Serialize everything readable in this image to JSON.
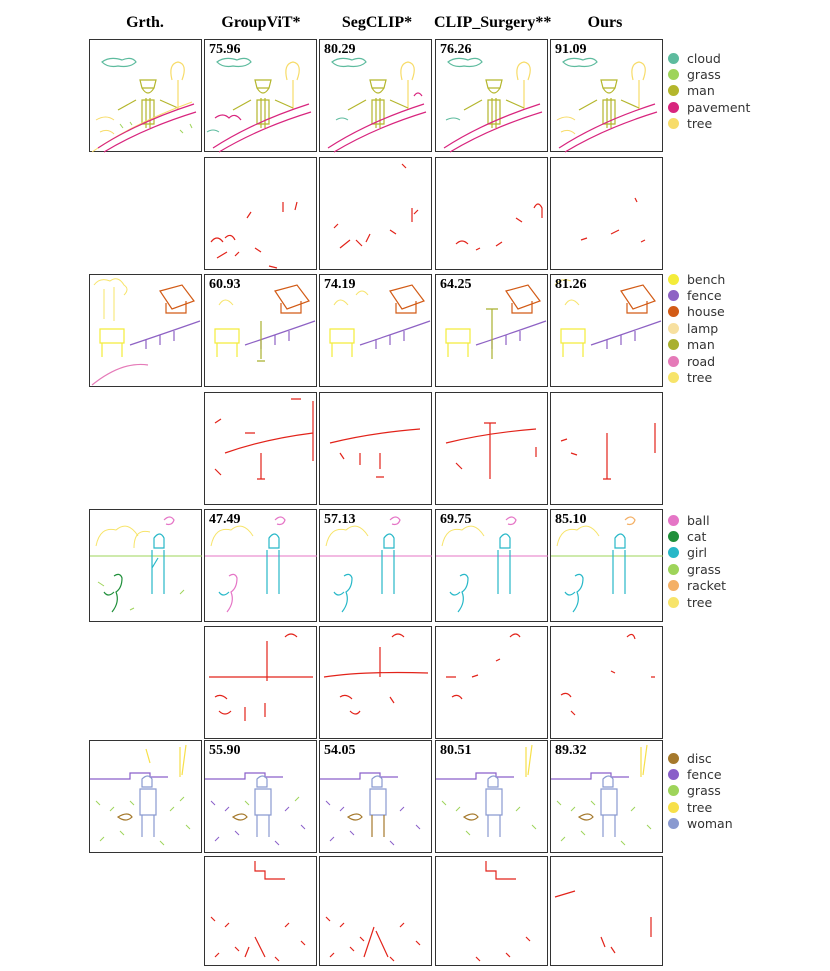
{
  "columns": [
    "Grth.",
    "GroupViT*",
    "SegCLIP*",
    "CLIP_Surgery**",
    "Ours"
  ],
  "rows": [
    {
      "scores": [
        "75.96",
        "80.29",
        "76.26",
        "91.09"
      ],
      "legend": [
        {
          "label": "cloud",
          "color": "#5dbb9e"
        },
        {
          "label": "grass",
          "color": "#9ed45a"
        },
        {
          "label": "man",
          "color": "#b4b62c"
        },
        {
          "label": "pavement",
          "color": "#d8257e"
        },
        {
          "label": "tree",
          "color": "#f7dc6a"
        }
      ]
    },
    {
      "scores": [
        "60.93",
        "74.19",
        "64.25",
        "81.26"
      ],
      "legend": [
        {
          "label": "bench",
          "color": "#f4ec3a"
        },
        {
          "label": "fence",
          "color": "#8e62c4"
        },
        {
          "label": "house",
          "color": "#d25b16"
        },
        {
          "label": "lamp",
          "color": "#f7e0a0"
        },
        {
          "label": "man",
          "color": "#a9b02e"
        },
        {
          "label": "road",
          "color": "#e57ab8"
        },
        {
          "label": "tree",
          "color": "#f7e46a"
        }
      ]
    },
    {
      "scores": [
        "47.49",
        "57.13",
        "69.75",
        "85.10"
      ],
      "legend": [
        {
          "label": "ball",
          "color": "#e575c6"
        },
        {
          "label": "cat",
          "color": "#1f8f3a"
        },
        {
          "label": "girl",
          "color": "#27b8c8"
        },
        {
          "label": "grass",
          "color": "#9ed45a"
        },
        {
          "label": "racket",
          "color": "#f4b066"
        },
        {
          "label": "tree",
          "color": "#f7e46a"
        }
      ]
    },
    {
      "scores": [
        "55.90",
        "54.05",
        "80.51",
        "89.32"
      ],
      "legend": [
        {
          "label": "disc",
          "color": "#a5792c"
        },
        {
          "label": "fence",
          "color": "#8a5fc9"
        },
        {
          "label": "grass",
          "color": "#9ed45a"
        },
        {
          "label": "tree",
          "color": "#f7e04a"
        },
        {
          "label": "woman",
          "color": "#8a9ad0"
        }
      ]
    }
  ],
  "error_color": "#e2231a"
}
